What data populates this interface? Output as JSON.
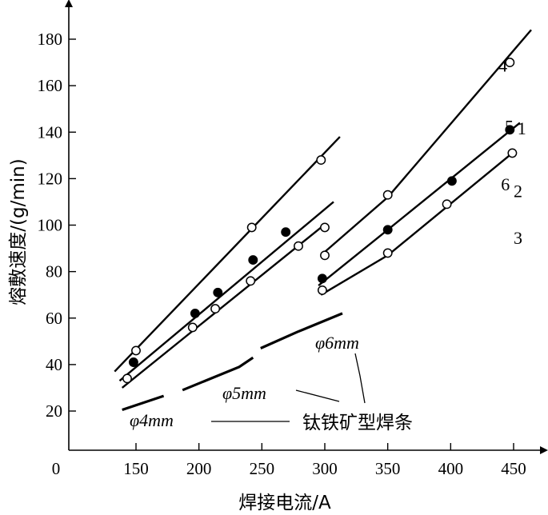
{
  "chart_data": {
    "type": "line",
    "title": "",
    "xlabel": "焊接电流/A",
    "ylabel": "熔敷速度/(g/min)",
    "xlim": [
      100,
      470
    ],
    "ylim": [
      0,
      190
    ],
    "origin_label": "0",
    "x_ticks": [
      150,
      200,
      250,
      300,
      350,
      400,
      450
    ],
    "y_ticks": [
      20,
      40,
      60,
      80,
      100,
      120,
      140,
      160,
      180
    ],
    "series": [
      {
        "name": "1",
        "marker": "open",
        "line": [
          [
            133,
            37
          ],
          [
            312,
            138
          ]
        ],
        "points": [
          [
            150,
            46
          ],
          [
            242,
            99
          ],
          [
            297,
            128
          ]
        ]
      },
      {
        "name": "2",
        "marker": "filled",
        "line": [
          [
            137,
            33
          ],
          [
            307,
            110
          ]
        ],
        "points": [
          [
            148,
            41
          ],
          [
            197,
            62
          ],
          [
            215,
            71
          ],
          [
            243,
            85
          ],
          [
            269,
            97
          ]
        ]
      },
      {
        "name": "3",
        "marker": "open",
        "line": [
          [
            139,
            30
          ],
          [
            297,
            99
          ]
        ],
        "points": [
          [
            143,
            34
          ],
          [
            195,
            56
          ],
          [
            213,
            64
          ],
          [
            241,
            76
          ],
          [
            279,
            91
          ],
          [
            300,
            99
          ]
        ]
      },
      {
        "name": "4",
        "marker": "open",
        "line": [
          [
            299,
            88
          ],
          [
            350,
            112
          ],
          [
            464,
            184
          ]
        ],
        "points": [
          [
            300,
            87
          ],
          [
            350,
            113
          ],
          [
            447,
            170
          ]
        ]
      },
      {
        "name": "5",
        "marker": "filled",
        "line": [
          [
            295,
            74
          ],
          [
            350,
            98
          ],
          [
            455,
            144
          ]
        ],
        "points": [
          [
            298,
            77
          ],
          [
            350,
            98
          ],
          [
            401,
            119
          ],
          [
            447,
            141
          ]
        ]
      },
      {
        "name": "6",
        "marker": "open",
        "line": [
          [
            297,
            70
          ],
          [
            350,
            87
          ],
          [
            449,
            131
          ]
        ],
        "points": [
          [
            298,
            72
          ],
          [
            350,
            88
          ],
          [
            397,
            109
          ],
          [
            449,
            131
          ]
        ]
      }
    ],
    "series_label_positions": [
      [
        453,
        139
      ],
      [
        450,
        112
      ],
      [
        450,
        92
      ],
      [
        438,
        166
      ],
      [
        443,
        140
      ],
      [
        440,
        115
      ]
    ],
    "reference_curves": [
      {
        "name": "φ4mm",
        "segments": [
          [
            [
              139,
              20.5
            ],
            [
              172,
              26.5
            ]
          ]
        ]
      },
      {
        "name": "φ5mm",
        "segments": [
          [
            [
              187,
              29
            ],
            [
              232,
              39
            ],
            [
              243,
              43
            ]
          ]
        ]
      },
      {
        "name": "φ6mm",
        "segments": [
          [
            [
              249,
              47
            ],
            [
              278,
              54
            ],
            [
              314,
              62
            ]
          ]
        ]
      }
    ],
    "annotations": {
      "d4": "φ4mm",
      "d5": "φ5mm",
      "d6": "φ6mm",
      "electrode": "钛铁矿型焊条"
    }
  }
}
